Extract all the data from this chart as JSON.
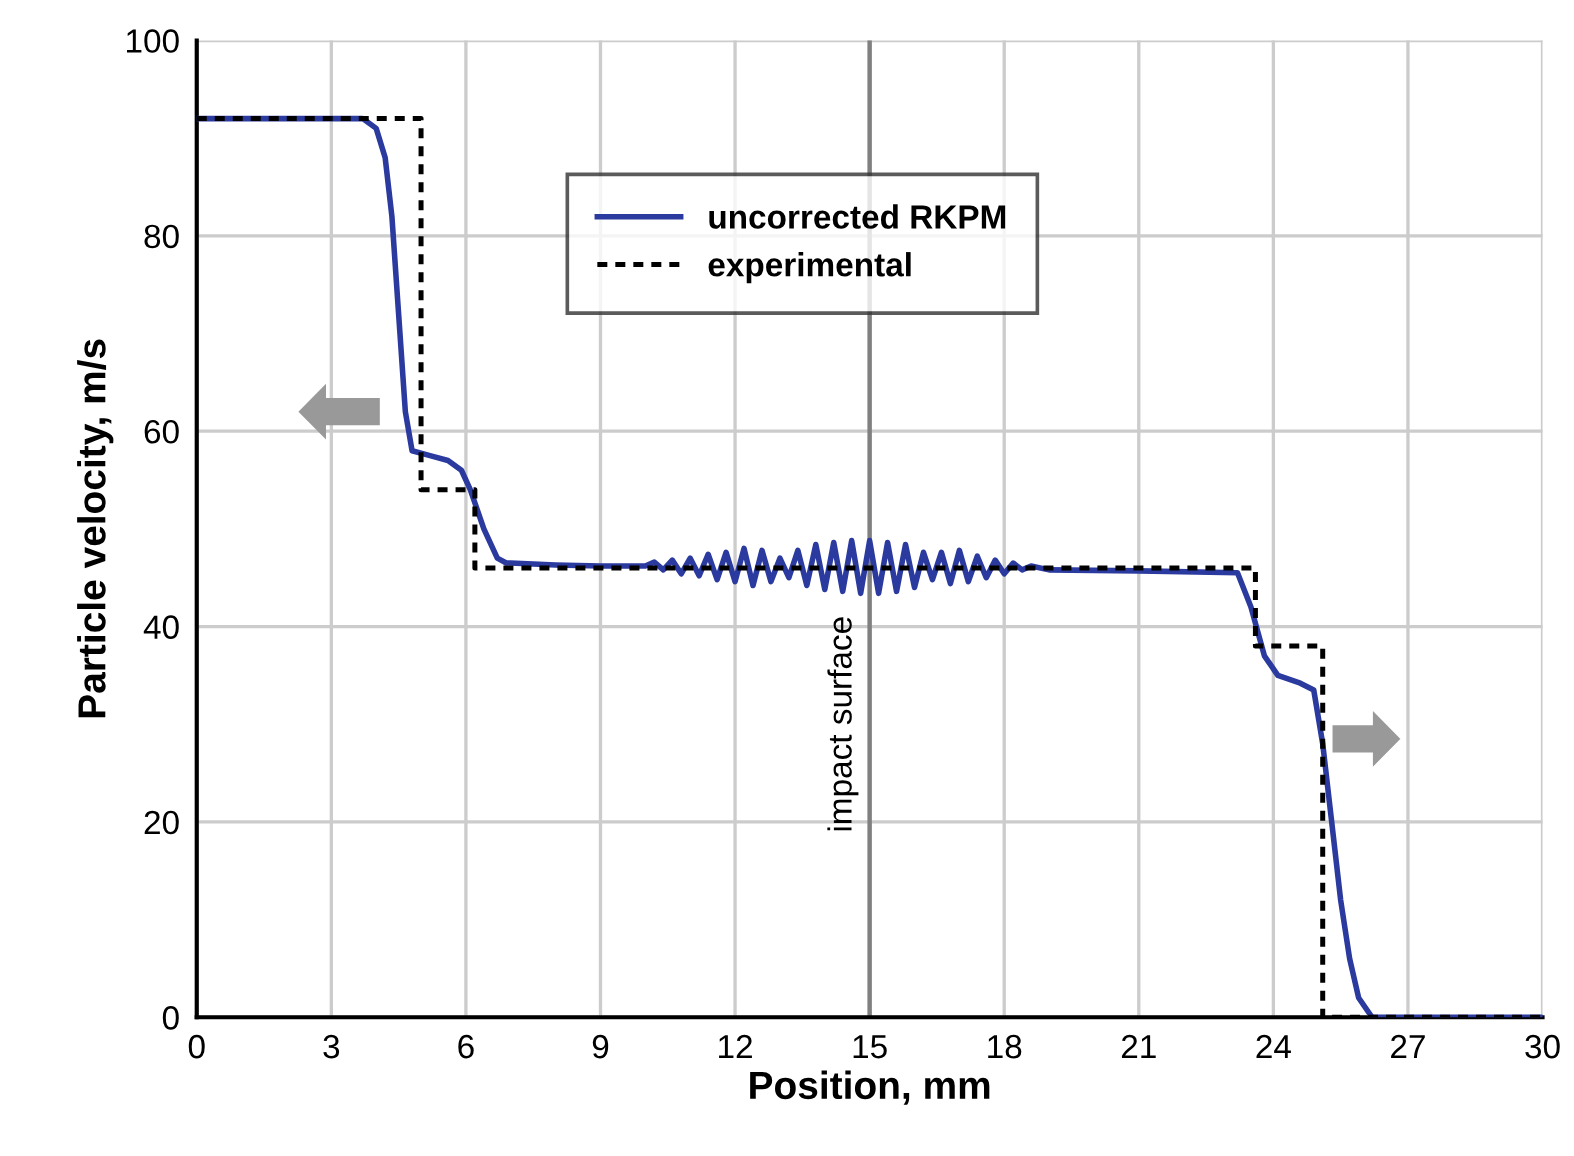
{
  "chart_data": {
    "type": "line",
    "xlabel": "Position, mm",
    "ylabel": "Particle velocity, m/s",
    "xlim": [
      0,
      30
    ],
    "xticks": [
      0,
      3,
      6,
      9,
      12,
      15,
      18,
      21,
      24,
      27,
      30
    ],
    "ylim": [
      0,
      100
    ],
    "yticks": [
      0,
      20,
      40,
      60,
      80,
      100
    ],
    "grid": true,
    "legend": "top",
    "ref_lines": [
      {
        "axis": "x",
        "value": 15,
        "label": "impact surface",
        "color": "#808080",
        "line_style": "solid"
      }
    ],
    "series": [
      {
        "name": "uncorrected RKPM",
        "color": "#2b3a9e",
        "line_style": "solid",
        "x": [
          0,
          3.7,
          4.0,
          4.2,
          4.35,
          4.5,
          4.65,
          4.8,
          5.2,
          5.6,
          5.9,
          6.1,
          6.4,
          6.7,
          6.9,
          7.0,
          8,
          9,
          10,
          10.2,
          10.4,
          10.6,
          10.8,
          11.0,
          11.2,
          11.4,
          11.6,
          11.8,
          12.0,
          12.2,
          12.4,
          12.6,
          12.8,
          13.0,
          13.2,
          13.4,
          13.6,
          13.8,
          14.0,
          14.2,
          14.4,
          14.6,
          14.8,
          15.0,
          15.2,
          15.4,
          15.6,
          15.8,
          16.0,
          16.2,
          16.4,
          16.6,
          16.8,
          17.0,
          17.2,
          17.4,
          17.6,
          17.8,
          18.0,
          18.2,
          18.4,
          18.6,
          19,
          21,
          23.2,
          23.5,
          23.8,
          24.1,
          24.6,
          24.9,
          25.1,
          25.3,
          25.5,
          25.7,
          25.9,
          26.2,
          30
        ],
        "values": [
          92,
          92,
          91,
          88,
          82,
          72,
          62,
          58,
          57.5,
          57,
          56,
          54,
          50,
          47,
          46.5,
          46.5,
          46.3,
          46.2,
          46.2,
          46.6,
          45.8,
          46.8,
          45.4,
          47,
          45.2,
          47.4,
          44.8,
          47.6,
          44.6,
          48,
          44.2,
          47.8,
          44.6,
          47,
          45,
          47.8,
          44.2,
          48.4,
          43.8,
          48.6,
          43.6,
          48.8,
          43.4,
          48.8,
          43.4,
          48.6,
          43.6,
          48.4,
          44,
          47.6,
          44.8,
          47.6,
          44.4,
          47.8,
          44.6,
          47.2,
          45,
          46.8,
          45.4,
          46.5,
          45.8,
          46.2,
          45.8,
          45.7,
          45.5,
          42,
          37,
          35,
          34.2,
          33.5,
          28,
          20,
          12,
          6,
          2,
          0,
          0
        ]
      },
      {
        "name": "experimental",
        "color": "#000000",
        "line_style": "dotted",
        "type": "step",
        "x": [
          0,
          5.0,
          6.2,
          23.6,
          25.1,
          30
        ],
        "values": [
          92,
          54,
          46,
          38,
          0,
          0
        ]
      }
    ]
  }
}
